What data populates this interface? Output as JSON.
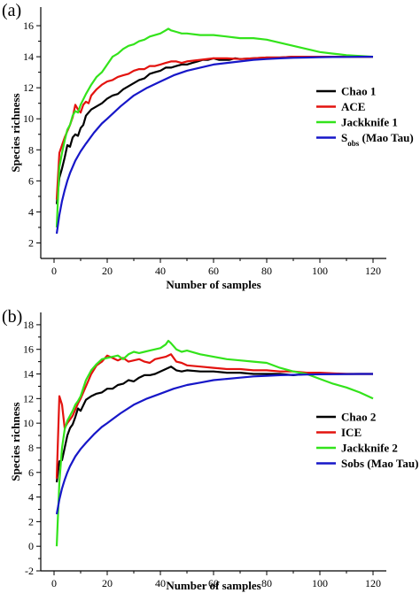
{
  "chart_data": [
    {
      "panel_label": "(a)",
      "type": "line",
      "xlabel": "Number of samples",
      "ylabel": "Species richness",
      "xlim": [
        -5,
        125
      ],
      "ylim": [
        1,
        17.2
      ],
      "xticks": [
        0,
        20,
        40,
        60,
        80,
        100,
        120
      ],
      "yticks": [
        2,
        4,
        6,
        8,
        10,
        12,
        14,
        16
      ],
      "legend_position": "right",
      "series": [
        {
          "name": "Chao 1",
          "color": "#000000",
          "x": [
            1,
            2,
            3,
            4,
            5,
            6,
            7,
            8,
            9,
            10,
            11,
            12,
            14,
            16,
            18,
            20,
            22,
            24,
            26,
            28,
            30,
            32,
            34,
            36,
            38,
            40,
            42,
            44,
            46,
            48,
            50,
            52,
            54,
            56,
            58,
            60,
            62,
            64,
            66,
            68,
            70,
            75,
            80,
            85,
            90,
            95,
            100,
            105,
            110,
            115,
            120
          ],
          "y": [
            4.5,
            6.2,
            6.8,
            7.5,
            8.3,
            8.2,
            8.8,
            9.0,
            8.9,
            9.4,
            9.6,
            10.2,
            10.6,
            10.8,
            11.0,
            11.3,
            11.5,
            11.6,
            11.9,
            12.1,
            12.3,
            12.5,
            12.6,
            12.9,
            13.0,
            13.1,
            13.3,
            13.3,
            13.4,
            13.5,
            13.5,
            13.6,
            13.7,
            13.8,
            13.8,
            13.9,
            13.8,
            13.8,
            13.8,
            13.9,
            13.85,
            13.9,
            13.95,
            13.95,
            14.0,
            14.0,
            14.0,
            14.0,
            14.0,
            14.0,
            14.0
          ]
        },
        {
          "name": "ACE",
          "color": "#e3130f",
          "x": [
            1,
            2,
            3,
            4,
            5,
            6,
            7,
            8,
            9,
            10,
            11,
            12,
            13,
            14,
            16,
            18,
            20,
            22,
            24,
            26,
            28,
            30,
            32,
            34,
            36,
            38,
            40,
            42,
            44,
            46,
            48,
            50,
            55,
            60,
            65,
            70,
            75,
            80,
            85,
            90,
            95,
            100,
            105,
            110,
            115,
            120
          ],
          "y": [
            4.8,
            7.8,
            8.3,
            8.8,
            9.2,
            9.6,
            10.1,
            10.9,
            10.6,
            10.4,
            10.9,
            11.1,
            11.0,
            11.5,
            11.9,
            12.2,
            12.4,
            12.5,
            12.7,
            12.8,
            12.9,
            13.1,
            13.2,
            13.2,
            13.4,
            13.4,
            13.5,
            13.6,
            13.7,
            13.7,
            13.6,
            13.7,
            13.8,
            13.9,
            13.9,
            13.85,
            13.9,
            13.95,
            13.95,
            14.0,
            14.0,
            14.0,
            14.0,
            14.0,
            14.0,
            14.0
          ]
        },
        {
          "name": "Jackknife 1",
          "color": "#33e31b",
          "x": [
            1,
            2,
            3,
            4,
            5,
            6,
            7,
            8,
            9,
            10,
            12,
            14,
            16,
            18,
            20,
            22,
            24,
            26,
            28,
            30,
            32,
            34,
            36,
            38,
            40,
            42,
            43,
            44,
            46,
            48,
            50,
            55,
            60,
            65,
            70,
            75,
            80,
            85,
            90,
            95,
            100,
            105,
            110,
            115,
            120
          ],
          "y": [
            3.0,
            6.9,
            7.8,
            8.6,
            9.3,
            9.6,
            10.2,
            10.5,
            10.4,
            10.9,
            11.6,
            12.2,
            12.7,
            13.0,
            13.5,
            14.0,
            14.2,
            14.5,
            14.7,
            14.8,
            15.0,
            15.1,
            15.3,
            15.4,
            15.5,
            15.7,
            15.8,
            15.7,
            15.6,
            15.5,
            15.5,
            15.4,
            15.4,
            15.3,
            15.2,
            15.2,
            15.1,
            14.9,
            14.7,
            14.5,
            14.3,
            14.2,
            14.1,
            14.05,
            14.0
          ]
        },
        {
          "name": "S_obs (Mao Tau)",
          "color": "#1717c8",
          "x": [
            1,
            2,
            3,
            4,
            5,
            6,
            8,
            10,
            12,
            15,
            18,
            20,
            25,
            30,
            35,
            40,
            45,
            50,
            55,
            60,
            65,
            70,
            75,
            80,
            85,
            90,
            95,
            100,
            105,
            110,
            115,
            120
          ],
          "y": [
            2.6,
            3.8,
            4.7,
            5.4,
            6.0,
            6.5,
            7.3,
            7.9,
            8.4,
            9.1,
            9.7,
            10.0,
            10.8,
            11.5,
            12.0,
            12.4,
            12.8,
            13.1,
            13.3,
            13.5,
            13.6,
            13.7,
            13.8,
            13.85,
            13.9,
            13.93,
            13.95,
            13.97,
            13.98,
            13.99,
            14.0,
            14.0
          ]
        }
      ]
    },
    {
      "panel_label": "(b)",
      "type": "line",
      "xlabel": "Number of samples",
      "ylabel": "Species richness",
      "xlim": [
        -5,
        125
      ],
      "ylim": [
        -2,
        19
      ],
      "xticks": [
        0,
        20,
        40,
        60,
        80,
        100,
        120
      ],
      "yticks": [
        -2,
        0,
        2,
        4,
        6,
        8,
        10,
        12,
        14,
        16,
        18
      ],
      "legend_position": "bottom-right",
      "series": [
        {
          "name": "Chao 2",
          "color": "#000000",
          "x": [
            1,
            2,
            3,
            4,
            5,
            6,
            7,
            8,
            9,
            10,
            12,
            14,
            16,
            18,
            20,
            22,
            24,
            26,
            28,
            30,
            32,
            34,
            36,
            38,
            40,
            42,
            44,
            46,
            48,
            50,
            55,
            60,
            65,
            70,
            75,
            80,
            85,
            90,
            95,
            100,
            105,
            110,
            115,
            120
          ],
          "y": [
            5.2,
            6.9,
            7.0,
            8.0,
            9.0,
            9.6,
            9.9,
            10.5,
            11.2,
            11.0,
            11.9,
            12.2,
            12.4,
            12.5,
            12.8,
            12.8,
            13.1,
            13.2,
            13.5,
            13.4,
            13.7,
            13.9,
            13.9,
            14.0,
            14.2,
            14.4,
            14.6,
            14.3,
            14.2,
            14.3,
            14.2,
            14.2,
            14.1,
            14.1,
            14.0,
            14.0,
            14.0,
            13.9,
            14.0,
            14.0,
            14.0,
            14.0,
            14.0,
            14.0
          ]
        },
        {
          "name": "ICE",
          "color": "#e3130f",
          "x": [
            1,
            2,
            3,
            4,
            5,
            6,
            7,
            8,
            9,
            10,
            12,
            14,
            16,
            18,
            20,
            22,
            24,
            26,
            28,
            30,
            32,
            34,
            36,
            38,
            40,
            42,
            44,
            46,
            48,
            50,
            55,
            60,
            65,
            70,
            75,
            80,
            85,
            90,
            95,
            100,
            105,
            110,
            115,
            120
          ],
          "y": [
            5.5,
            12.2,
            11.5,
            9.6,
            10.0,
            10.3,
            10.6,
            11.1,
            11.6,
            12.0,
            13.0,
            14.0,
            14.7,
            15.0,
            15.5,
            15.3,
            15.1,
            15.3,
            15.0,
            15.1,
            15.2,
            15.0,
            14.9,
            15.2,
            15.3,
            15.4,
            15.6,
            15.0,
            14.9,
            14.7,
            14.6,
            14.5,
            14.4,
            14.4,
            14.3,
            14.3,
            14.2,
            14.2,
            14.1,
            14.1,
            14.05,
            14.0,
            14.0,
            14.0
          ]
        },
        {
          "name": "Jackknife 2",
          "color": "#33e31b",
          "x": [
            1,
            2,
            3,
            4,
            5,
            6,
            7,
            8,
            9,
            10,
            12,
            14,
            16,
            18,
            20,
            22,
            24,
            26,
            28,
            30,
            32,
            34,
            36,
            38,
            40,
            42,
            43,
            44,
            46,
            48,
            50,
            55,
            60,
            65,
            70,
            75,
            80,
            85,
            90,
            95,
            100,
            105,
            110,
            115,
            120
          ],
          "y": [
            0.0,
            5.2,
            8.0,
            9.5,
            10.2,
            10.6,
            11.0,
            11.5,
            11.8,
            12.2,
            13.5,
            14.3,
            14.8,
            15.2,
            15.3,
            15.4,
            15.5,
            15.2,
            15.6,
            15.8,
            15.7,
            15.8,
            15.9,
            16.0,
            16.1,
            16.4,
            16.7,
            16.5,
            16.0,
            15.8,
            15.9,
            15.6,
            15.4,
            15.2,
            15.1,
            15.0,
            14.9,
            14.5,
            14.2,
            14.0,
            13.6,
            13.2,
            12.9,
            12.5,
            12.0
          ]
        },
        {
          "name": "Sobs (Mao Tau)",
          "color": "#1717c8",
          "x": [
            1,
            2,
            3,
            4,
            5,
            6,
            8,
            10,
            12,
            15,
            18,
            20,
            25,
            30,
            35,
            40,
            45,
            50,
            55,
            60,
            65,
            70,
            75,
            80,
            85,
            90,
            95,
            100,
            105,
            110,
            115,
            120
          ],
          "y": [
            2.6,
            3.8,
            4.7,
            5.4,
            6.0,
            6.5,
            7.3,
            7.9,
            8.4,
            9.1,
            9.7,
            10.0,
            10.8,
            11.5,
            12.0,
            12.4,
            12.8,
            13.1,
            13.3,
            13.5,
            13.6,
            13.7,
            13.8,
            13.85,
            13.9,
            13.93,
            13.95,
            13.97,
            13.98,
            13.99,
            14.0,
            14.0
          ]
        }
      ]
    }
  ]
}
